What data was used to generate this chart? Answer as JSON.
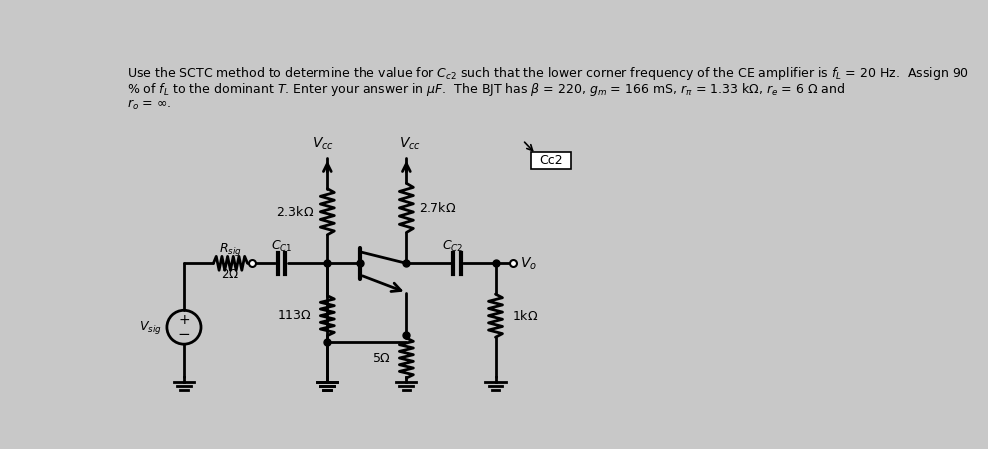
{
  "background_color": "#c8c8c8",
  "text_color": "#000000",
  "title_line1": "Use the SCTC method to determine the value for $C_{c2}$ such that the lower corner frequency of the CE amplifier is $f_L$ = 20 Hz.  Assign 90",
  "title_line2": "% of $f_L$ to the dominant $T$. Enter your answer in $\\mu F$.  The BJT has $\\beta$ = 220, $g_m$ = 166 mS, $r_\\pi$ = 1.33 k$\\Omega$, $r_e$ = 6 $\\Omega$ and",
  "title_line3": "$r_o$ = $\\infty$.",
  "box_label": "Cc2",
  "vcc_label": "$V_{cc}$",
  "vo_label": "$V_o$",
  "vsig_label": "$V_{sig}$",
  "rsig_label": "$R_{sig}$",
  "r1_label": "2.3k$\\Omega$",
  "r2_label": "2.7k$\\Omega$",
  "re1_label": "113$\\Omega$",
  "re2_label": "5$\\Omega$",
  "rl_label": "1k$\\Omega$",
  "rsig_val": "2$\\Omega$",
  "cc1_label": "$C_{C1}$",
  "cc2_label": "$C_{C2}$"
}
